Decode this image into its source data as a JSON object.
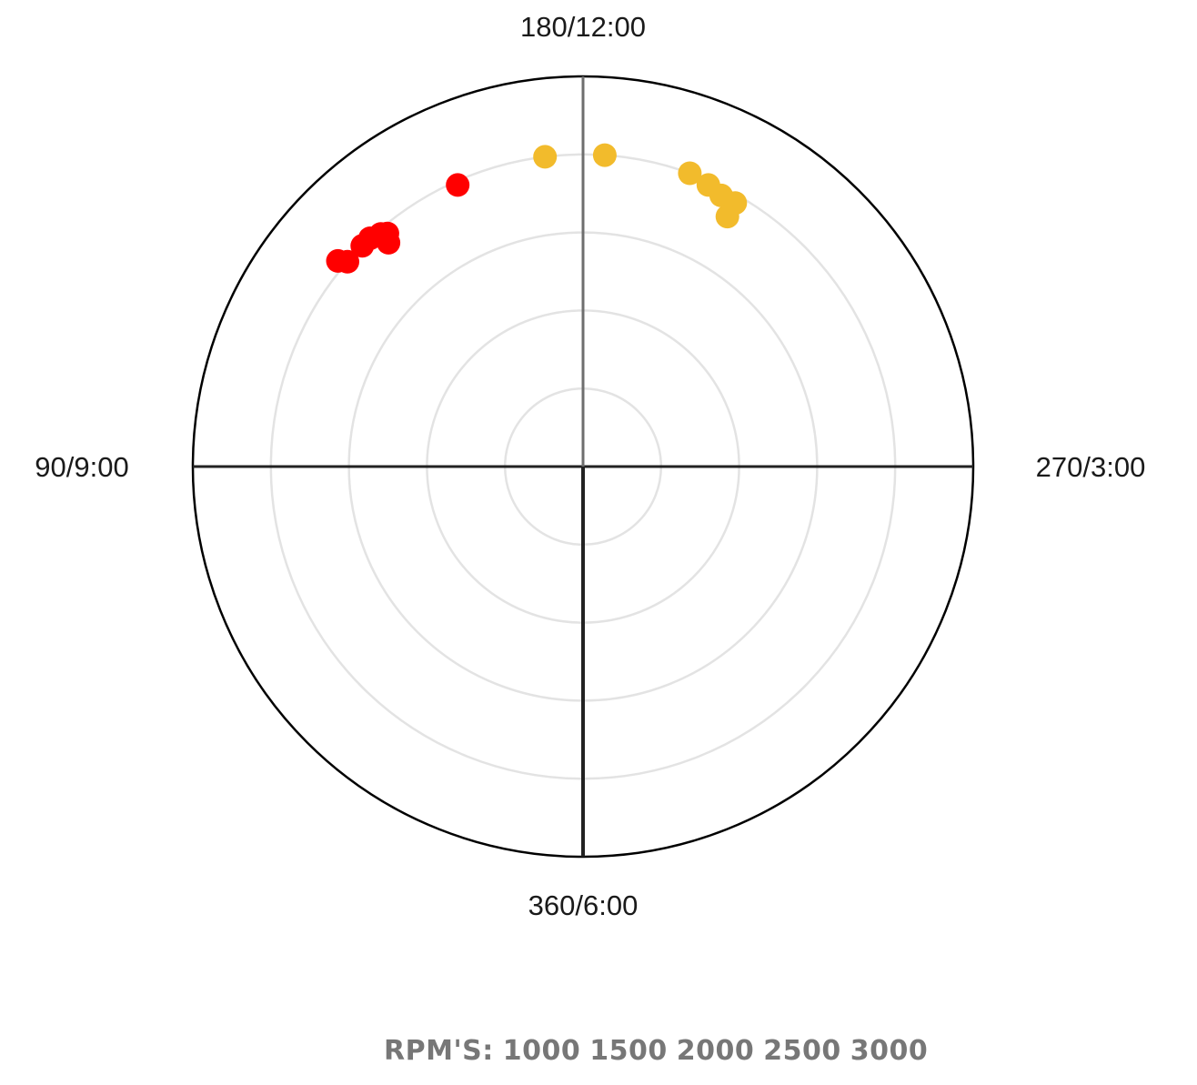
{
  "chart_data": {
    "type": "scatter",
    "coordinate_system": "polar",
    "direction_labels": {
      "top": "180/12:00",
      "left": "90/9:00",
      "right": "270/3:00",
      "bottom": "360/6:00"
    },
    "angle_convention": "degrees: 0/360 at bottom, 90 at left, 180 at top, 270 at right",
    "rings": 4,
    "grid": true,
    "series": [
      {
        "color": "#ff0000",
        "points": [
          {
            "angle": 130,
            "radius": 0.82
          },
          {
            "angle": 131,
            "radius": 0.8
          },
          {
            "angle": 135,
            "radius": 0.8
          },
          {
            "angle": 137,
            "radius": 0.8
          },
          {
            "angle": 139,
            "radius": 0.79
          },
          {
            "angle": 140,
            "radius": 0.78
          },
          {
            "angle": 139,
            "radius": 0.76
          },
          {
            "angle": 156,
            "radius": 0.79
          }
        ]
      },
      {
        "color": "#f2bb2c",
        "points": [
          {
            "angle": 173,
            "radius": 0.8
          },
          {
            "angle": 184,
            "radius": 0.8
          },
          {
            "angle": 200,
            "radius": 0.8
          },
          {
            "angle": 204,
            "radius": 0.79
          },
          {
            "angle": 207,
            "radius": 0.78
          },
          {
            "angle": 210,
            "radius": 0.78
          },
          {
            "angle": 210,
            "radius": 0.74
          }
        ]
      }
    ]
  },
  "legend": {
    "prefix": "RPM'S:",
    "values": [
      "1000",
      "1500",
      "2000",
      "2500",
      "3000"
    ]
  },
  "colors": {
    "outer_circle": "#000000",
    "rings": "#e3e3e3",
    "axes": "#222222",
    "upper_axis": "#6e6e6e"
  }
}
